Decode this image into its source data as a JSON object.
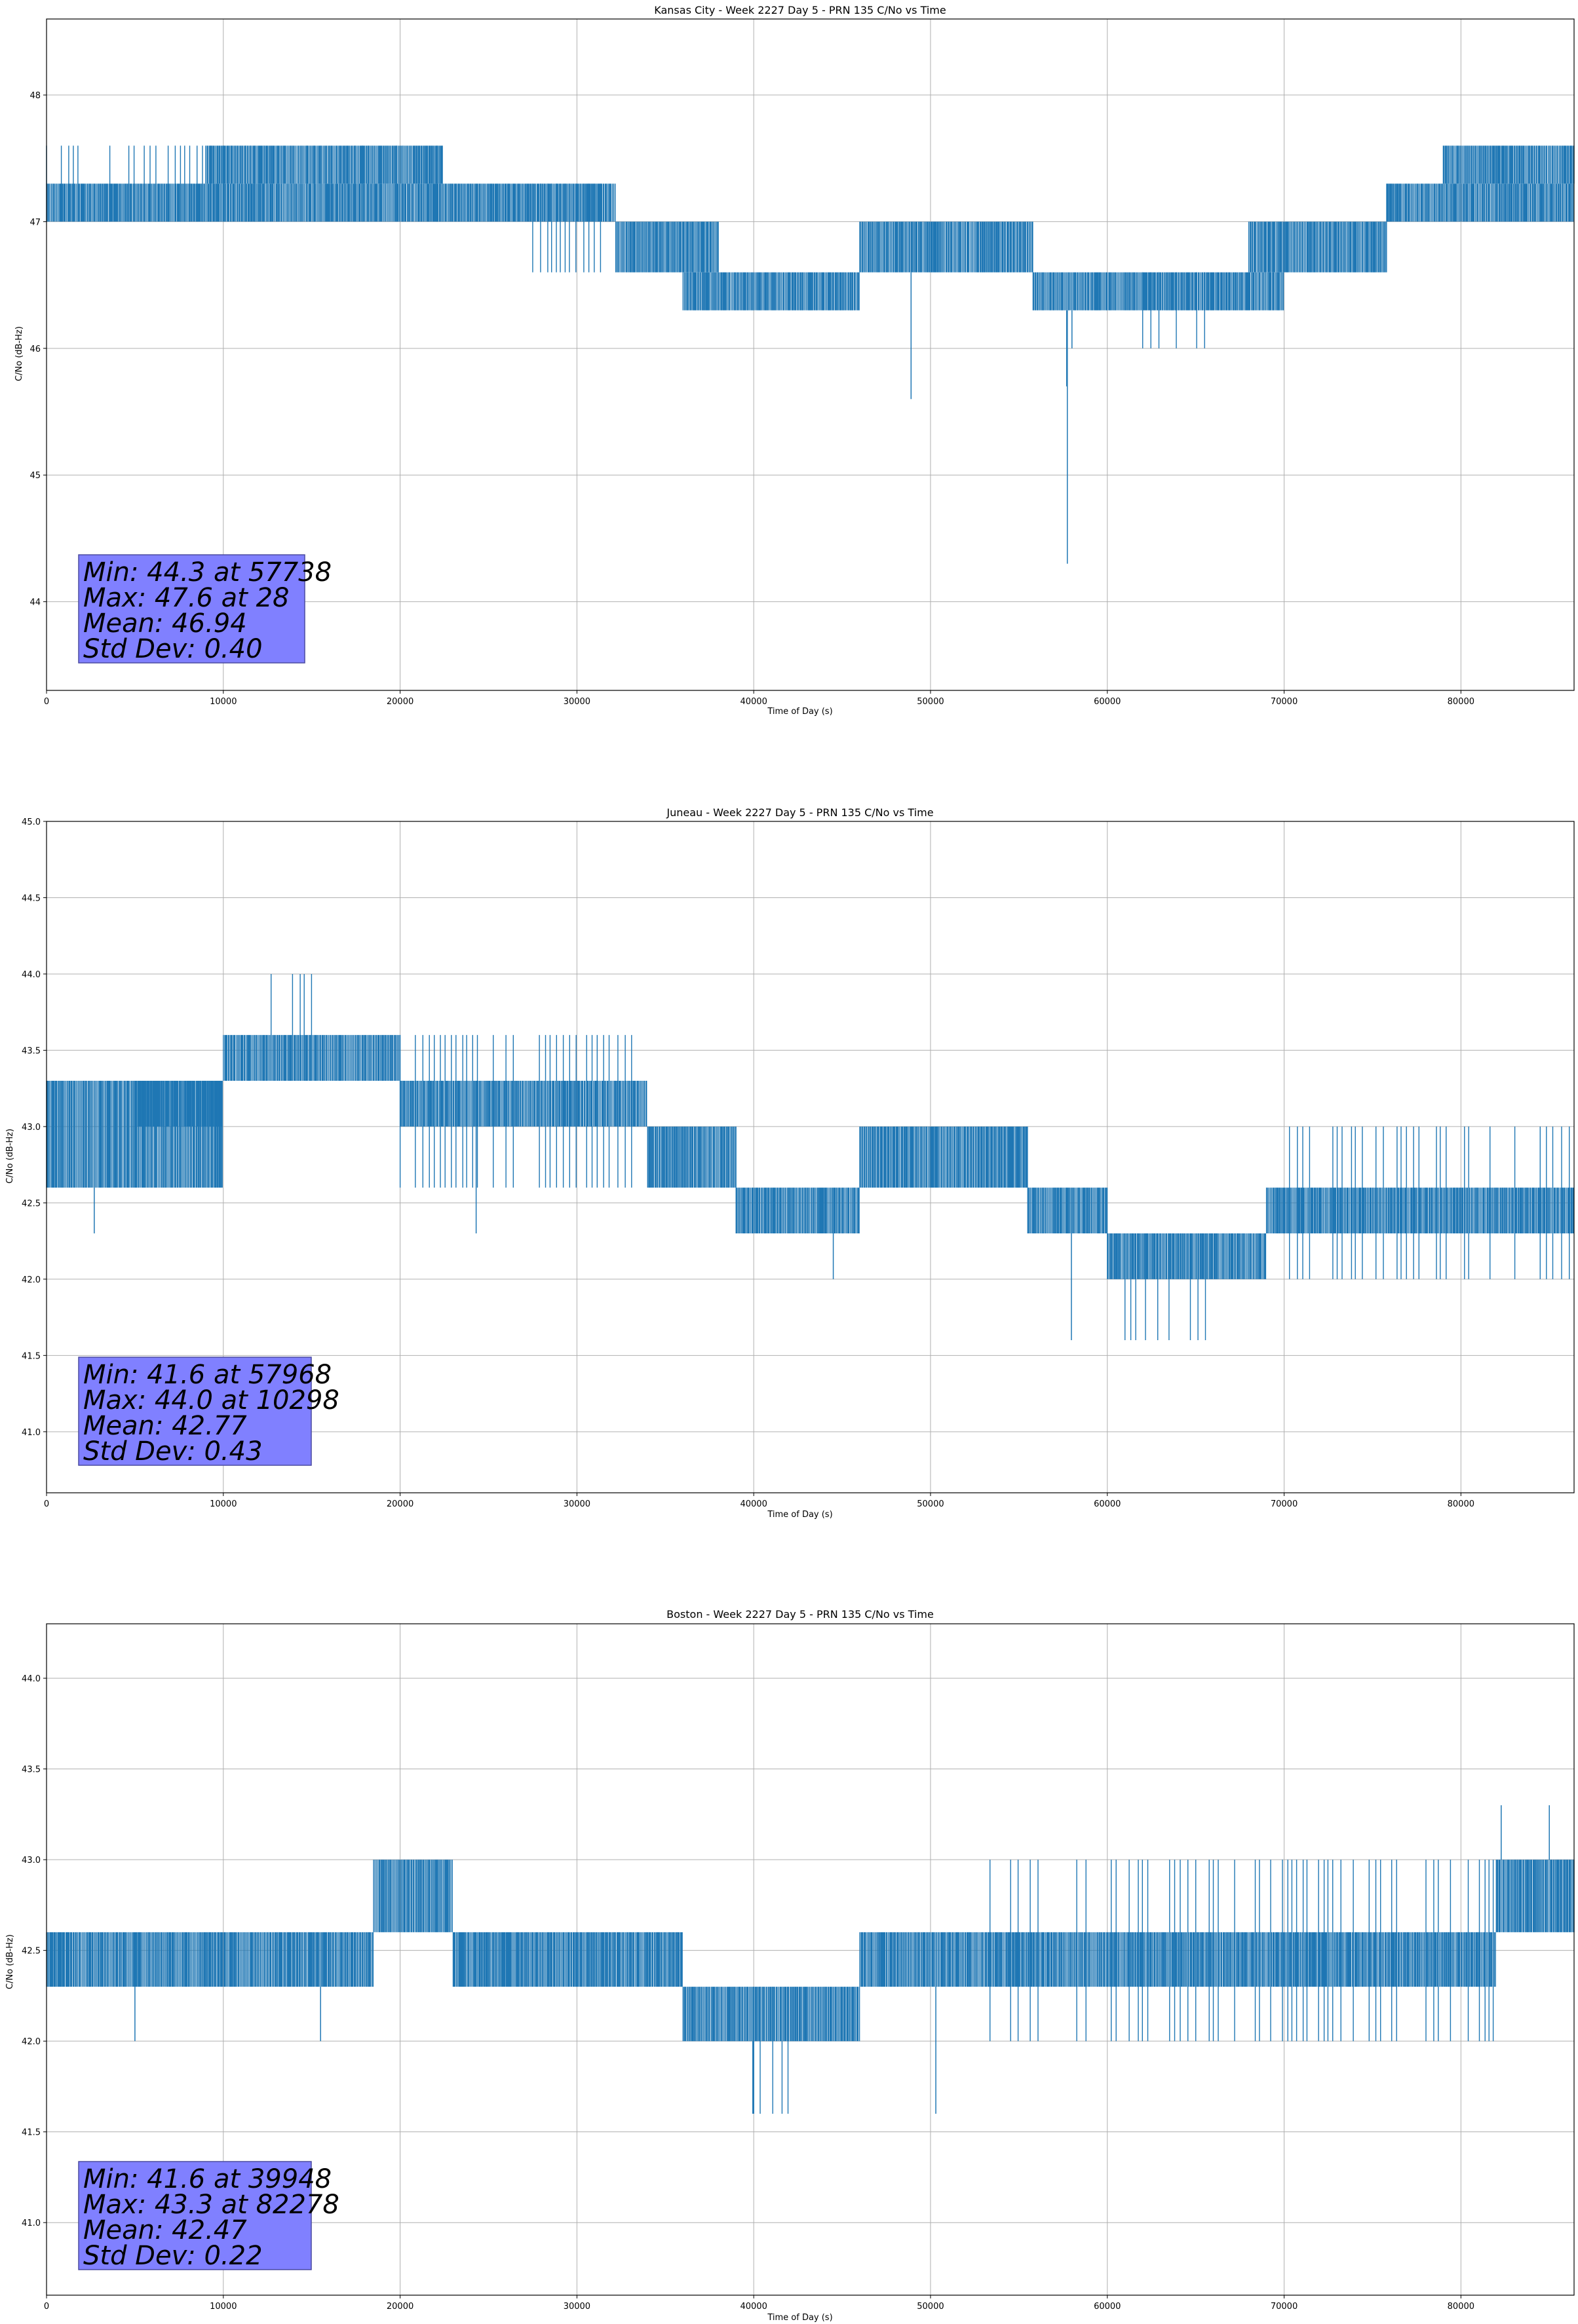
{
  "chart_data": [
    {
      "type": "line",
      "title": "Kansas City - Week 2227 Day 5 - PRN 135 C/No vs Time",
      "xlabel": "Time of Day (s)",
      "ylabel": "C/No (dB-Hz)",
      "xlim": [
        0,
        86400
      ],
      "ylim": [
        43.3,
        48.6
      ],
      "xticks": [
        0,
        10000,
        20000,
        30000,
        40000,
        50000,
        60000,
        70000,
        80000
      ],
      "yticks": [
        44,
        45,
        46,
        47,
        48
      ],
      "grid": true,
      "series_color": "#1f77b4",
      "series": [
        {
          "segments": [
            {
              "x": [
                0,
                22400
              ],
              "lo": 47.0,
              "hi": 47.3
            },
            {
              "x": [
                0,
                22400
              ],
              "lo": 47.0,
              "hi": 47.6,
              "sparse": true
            },
            {
              "x": [
                9000,
                22400
              ],
              "lo": 47.3,
              "hi": 47.6
            },
            {
              "x": [
                22400,
                32200
              ],
              "lo": 47.0,
              "hi": 47.3
            },
            {
              "x": [
                27500,
                32200
              ],
              "lo": 46.6,
              "hi": 47.3,
              "sparse": true
            },
            {
              "x": [
                32200,
                38000
              ],
              "lo": 46.6,
              "hi": 47.0
            },
            {
              "x": [
                36000,
                46000
              ],
              "lo": 46.3,
              "hi": 46.6
            },
            {
              "x": [
                46000,
                55800
              ],
              "lo": 46.6,
              "hi": 47.0
            },
            {
              "x": [
                55800,
                60000
              ],
              "lo": 46.3,
              "hi": 46.6
            },
            {
              "x": [
                60000,
                70000
              ],
              "lo": 46.3,
              "hi": 46.6
            },
            {
              "x": [
                62000,
                67000
              ],
              "lo": 46.0,
              "hi": 46.6,
              "sparse": true
            },
            {
              "x": [
                68000,
                75800
              ],
              "lo": 46.6,
              "hi": 47.0
            },
            {
              "x": [
                75800,
                86400
              ],
              "lo": 47.0,
              "hi": 47.3
            },
            {
              "x": [
                79000,
                86400
              ],
              "lo": 47.3,
              "hi": 47.6
            }
          ],
          "spikes": [
            [
              48900,
              45.6
            ],
            [
              57738,
              44.3
            ],
            [
              57700,
              45.7
            ],
            [
              58000,
              46.0
            ]
          ]
        }
      ],
      "stats": {
        "min": "Min: 44.3 at 57738",
        "max": "Max: 47.6 at 28",
        "mean": "Mean: 46.94",
        "std": "Std Dev: 0.40"
      }
    },
    {
      "type": "line",
      "title": "Juneau - Week 2227 Day 5 - PRN 135 C/No vs Time",
      "xlabel": "Time of Day (s)",
      "ylabel": "C/No (dB-Hz)",
      "xlim": [
        0,
        86400
      ],
      "ylim": [
        40.6,
        45.0
      ],
      "xticks": [
        0,
        10000,
        20000,
        30000,
        40000,
        50000,
        60000,
        70000,
        80000
      ],
      "yticks": [
        41.0,
        41.5,
        42.0,
        42.5,
        43.0,
        43.5,
        44.0,
        44.5,
        45.0
      ],
      "grid": true,
      "series_color": "#1f77b4",
      "series": [
        {
          "segments": [
            {
              "x": [
                0,
                10000
              ],
              "lo": 42.6,
              "hi": 43.3
            },
            {
              "x": [
                5000,
                10000
              ],
              "lo": 43.0,
              "hi": 43.3
            },
            {
              "x": [
                10000,
                20000
              ],
              "lo": 43.3,
              "hi": 43.6
            },
            {
              "x": [
                11000,
                15000
              ],
              "lo": 43.3,
              "hi": 44.0,
              "sparse": true
            },
            {
              "x": [
                20000,
                34000
              ],
              "lo": 43.0,
              "hi": 43.3
            },
            {
              "x": [
                20000,
                34000
              ],
              "lo": 42.6,
              "hi": 43.6,
              "sparse": true
            },
            {
              "x": [
                34000,
                39000
              ],
              "lo": 42.6,
              "hi": 43.0
            },
            {
              "x": [
                39000,
                46000
              ],
              "lo": 42.3,
              "hi": 42.6
            },
            {
              "x": [
                46000,
                55500
              ],
              "lo": 42.6,
              "hi": 43.0
            },
            {
              "x": [
                55500,
                60000
              ],
              "lo": 42.3,
              "hi": 42.6
            },
            {
              "x": [
                60000,
                69000
              ],
              "lo": 42.0,
              "hi": 42.3
            },
            {
              "x": [
                61000,
                66000
              ],
              "lo": 41.6,
              "hi": 42.3,
              "sparse": true
            },
            {
              "x": [
                69000,
                86400
              ],
              "lo": 42.3,
              "hi": 42.6
            },
            {
              "x": [
                69000,
                86400
              ],
              "lo": 42.0,
              "hi": 43.0,
              "sparse": true
            }
          ],
          "spikes": [
            [
              57968,
              41.6
            ],
            [
              44500,
              42.0
            ],
            [
              24300,
              42.3
            ],
            [
              2700,
              42.3
            ]
          ]
        }
      ],
      "stats": {
        "min": "Min: 41.6 at 57968",
        "max": "Max: 44.0 at 10298",
        "mean": "Mean: 42.77",
        "std": "Std Dev: 0.43"
      }
    },
    {
      "type": "line",
      "title": "Boston - Week 2227 Day 5 - PRN 135 C/No vs Time",
      "xlabel": "Time of Day (s)",
      "ylabel": "C/No (dB-Hz)",
      "xlim": [
        0,
        86400
      ],
      "ylim": [
        40.6,
        44.3
      ],
      "xticks": [
        0,
        10000,
        20000,
        30000,
        40000,
        50000,
        60000,
        70000,
        80000
      ],
      "yticks": [
        41.0,
        41.5,
        42.0,
        42.5,
        43.0,
        43.5,
        44.0
      ],
      "grid": true,
      "series_color": "#1f77b4",
      "series": [
        {
          "segments": [
            {
              "x": [
                0,
                18500
              ],
              "lo": 42.3,
              "hi": 42.6
            },
            {
              "x": [
                18500,
                23000
              ],
              "lo": 42.6,
              "hi": 43.0
            },
            {
              "x": [
                23000,
                36000
              ],
              "lo": 42.3,
              "hi": 42.6
            },
            {
              "x": [
                36000,
                46000
              ],
              "lo": 42.0,
              "hi": 42.3
            },
            {
              "x": [
                40000,
                42000
              ],
              "lo": 41.6,
              "hi": 42.3,
              "sparse": true
            },
            {
              "x": [
                46000,
                82000
              ],
              "lo": 42.3,
              "hi": 42.6
            },
            {
              "x": [
                53000,
                82000
              ],
              "lo": 42.0,
              "hi": 43.0,
              "sparse": true
            },
            {
              "x": [
                82000,
                86400
              ],
              "lo": 42.6,
              "hi": 43.0
            }
          ],
          "spikes": [
            [
              39948,
              41.6
            ],
            [
              50300,
              41.6
            ],
            [
              82278,
              43.3
            ],
            [
              85000,
              43.3
            ],
            [
              15500,
              42.0
            ],
            [
              5000,
              42.0
            ]
          ]
        }
      ],
      "stats": {
        "min": "Min: 41.6 at 39948",
        "max": "Max: 43.3 at 82278",
        "mean": "Mean: 42.47",
        "std": "Std Dev: 0.22"
      }
    }
  ]
}
